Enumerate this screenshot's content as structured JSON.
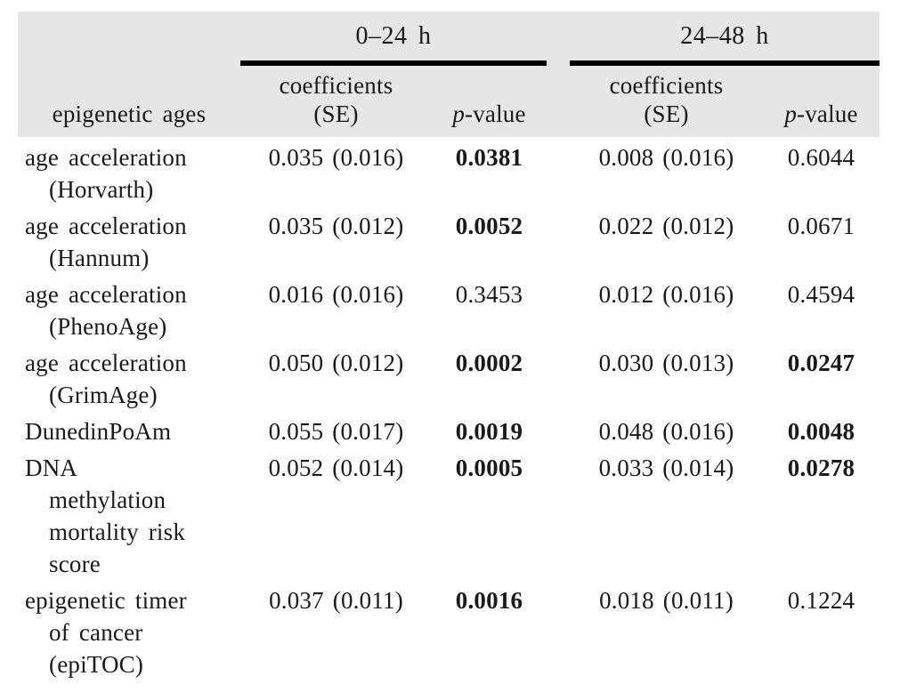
{
  "page": {
    "background_color": "#ffffff",
    "header_band_color": "#e6e6e6",
    "rule_color": "#000000",
    "text_color": "#1a1a1a"
  },
  "table": {
    "corner_label": "epigenetic ages",
    "groups": [
      {
        "label": "0–24 h"
      },
      {
        "label": "24–48 h"
      }
    ],
    "sub_header": {
      "coefficients": "coefficients\n(SE)",
      "p_italic": "p",
      "p_rest": "-value"
    },
    "rows": [
      {
        "label": "age acceleration\n(Horvarth)",
        "coef1": "0.035 (0.016)",
        "p1": "0.0381",
        "p1_bold": true,
        "coef2": "0.008 (0.016)",
        "p2": "0.6044",
        "p2_bold": false
      },
      {
        "label": "age acceleration\n(Hannum)",
        "coef1": "0.035 (0.012)",
        "p1": "0.0052",
        "p1_bold": true,
        "coef2": "0.022 (0.012)",
        "p2": "0.0671",
        "p2_bold": false
      },
      {
        "label": "age acceleration\n(PhenoAge)",
        "coef1": "0.016 (0.016)",
        "p1": "0.3453",
        "p1_bold": false,
        "coef2": "0.012 (0.016)",
        "p2": "0.4594",
        "p2_bold": false
      },
      {
        "label": "age acceleration\n(GrimAge)",
        "coef1": "0.050 (0.012)",
        "p1": "0.0002",
        "p1_bold": true,
        "coef2": "0.030 (0.013)",
        "p2": "0.0247",
        "p2_bold": true
      },
      {
        "label": "DunedinPoAm",
        "coef1": "0.055 (0.017)",
        "p1": "0.0019",
        "p1_bold": true,
        "coef2": "0.048 (0.016)",
        "p2": "0.0048",
        "p2_bold": true
      },
      {
        "label": "DNA\nmethylation\nmortality risk\nscore",
        "coef1": "0.052 (0.014)",
        "p1": "0.0005",
        "p1_bold": true,
        "coef2": "0.033 (0.014)",
        "p2": "0.0278",
        "p2_bold": true
      },
      {
        "label": "epigenetic timer\nof cancer\n(epiTOC)",
        "coef1": "0.037 (0.011)",
        "p1": "0.0016",
        "p1_bold": true,
        "coef2": "0.018 (0.011)",
        "p2": "0.1224",
        "p2_bold": false
      }
    ]
  }
}
